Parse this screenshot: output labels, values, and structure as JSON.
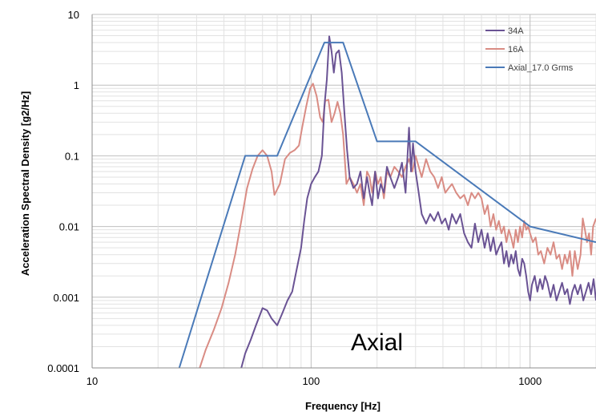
{
  "chart_data": {
    "type": "line",
    "title": "",
    "xlabel": "Frequency [Hz]",
    "ylabel": "Acceleration Spectral Density [g2/Hz]",
    "x_scale": "log",
    "y_scale": "log",
    "xlim": [
      10,
      2000
    ],
    "ylim": [
      0.0001,
      10
    ],
    "x_ticks": [
      {
        "value": 10,
        "label": "10"
      },
      {
        "value": 100,
        "label": "100"
      },
      {
        "value": 1000,
        "label": "1000"
      }
    ],
    "y_ticks": [
      {
        "value": 10,
        "label": "10"
      },
      {
        "value": 1,
        "label": "1"
      },
      {
        "value": 0.1,
        "label": "0.1"
      },
      {
        "value": 0.01,
        "label": "0.01"
      },
      {
        "value": 0.001,
        "label": "0.001"
      },
      {
        "value": 0.0001,
        "label": "0.0001"
      }
    ],
    "grid": true,
    "legend_position": "top-right",
    "annotation": "Axial",
    "series": [
      {
        "name": "34A",
        "color": "#6a5394",
        "points": [
          [
            48,
            0.0001
          ],
          [
            50,
            0.00016
          ],
          [
            53,
            0.00025
          ],
          [
            56,
            0.0004
          ],
          [
            60,
            0.0007
          ],
          [
            63,
            0.00065
          ],
          [
            66,
            0.0005
          ],
          [
            70,
            0.0004
          ],
          [
            74,
            0.0006
          ],
          [
            78,
            0.0009
          ],
          [
            82,
            0.0012
          ],
          [
            86,
            0.0025
          ],
          [
            90,
            0.005
          ],
          [
            93,
            0.012
          ],
          [
            96,
            0.025
          ],
          [
            100,
            0.04
          ],
          [
            104,
            0.05
          ],
          [
            108,
            0.06
          ],
          [
            112,
            0.1
          ],
          [
            115,
            0.5
          ],
          [
            118,
            1.2
          ],
          [
            121,
            4.9
          ],
          [
            124,
            3.0
          ],
          [
            127,
            1.5
          ],
          [
            130,
            2.8
          ],
          [
            134,
            3.1
          ],
          [
            138,
            1.5
          ],
          [
            142,
            0.4
          ],
          [
            146,
            0.12
          ],
          [
            150,
            0.05
          ],
          [
            156,
            0.035
          ],
          [
            162,
            0.04
          ],
          [
            168,
            0.06
          ],
          [
            174,
            0.025
          ],
          [
            180,
            0.05
          ],
          [
            185,
            0.03
          ],
          [
            190,
            0.02
          ],
          [
            196,
            0.06
          ],
          [
            202,
            0.025
          ],
          [
            208,
            0.04
          ],
          [
            215,
            0.03
          ],
          [
            222,
            0.07
          ],
          [
            230,
            0.05
          ],
          [
            240,
            0.035
          ],
          [
            250,
            0.05
          ],
          [
            260,
            0.08
          ],
          [
            270,
            0.03
          ],
          [
            280,
            0.25
          ],
          [
            286,
            0.06
          ],
          [
            292,
            0.15
          ],
          [
            300,
            0.06
          ],
          [
            310,
            0.03
          ],
          [
            320,
            0.015
          ],
          [
            335,
            0.011
          ],
          [
            350,
            0.015
          ],
          [
            365,
            0.012
          ],
          [
            380,
            0.016
          ],
          [
            395,
            0.011
          ],
          [
            410,
            0.013
          ],
          [
            425,
            0.009
          ],
          [
            440,
            0.015
          ],
          [
            460,
            0.011
          ],
          [
            480,
            0.015
          ],
          [
            500,
            0.008
          ],
          [
            520,
            0.006
          ],
          [
            540,
            0.005
          ],
          [
            560,
            0.011
          ],
          [
            580,
            0.006
          ],
          [
            600,
            0.009
          ],
          [
            620,
            0.005
          ],
          [
            640,
            0.008
          ],
          [
            660,
            0.0045
          ],
          [
            680,
            0.007
          ],
          [
            700,
            0.004
          ],
          [
            720,
            0.005
          ],
          [
            740,
            0.006
          ],
          [
            760,
            0.003
          ],
          [
            780,
            0.0045
          ],
          [
            800,
            0.0027
          ],
          [
            820,
            0.004
          ],
          [
            840,
            0.003
          ],
          [
            860,
            0.0045
          ],
          [
            880,
            0.0025
          ],
          [
            900,
            0.002
          ],
          [
            920,
            0.0035
          ],
          [
            940,
            0.003
          ],
          [
            960,
            0.002
          ],
          [
            980,
            0.0012
          ],
          [
            1000,
            0.0009
          ],
          [
            1020,
            0.0015
          ],
          [
            1050,
            0.002
          ],
          [
            1080,
            0.0012
          ],
          [
            1110,
            0.0018
          ],
          [
            1140,
            0.0013
          ],
          [
            1170,
            0.002
          ],
          [
            1200,
            0.0016
          ],
          [
            1240,
            0.001
          ],
          [
            1280,
            0.0015
          ],
          [
            1320,
            0.0009
          ],
          [
            1360,
            0.0012
          ],
          [
            1400,
            0.0016
          ],
          [
            1440,
            0.0011
          ],
          [
            1480,
            0.0013
          ],
          [
            1520,
            0.0008
          ],
          [
            1560,
            0.0012
          ],
          [
            1600,
            0.0015
          ],
          [
            1650,
            0.0011
          ],
          [
            1700,
            0.0015
          ],
          [
            1750,
            0.0009
          ],
          [
            1800,
            0.0012
          ],
          [
            1850,
            0.0016
          ],
          [
            1900,
            0.0011
          ],
          [
            1950,
            0.0018
          ],
          [
            2000,
            0.0009
          ]
        ]
      },
      {
        "name": "16A",
        "color": "#d98c84",
        "points": [
          [
            31,
            0.0001
          ],
          [
            33,
            0.00018
          ],
          [
            36,
            0.00035
          ],
          [
            39,
            0.0007
          ],
          [
            42,
            0.0016
          ],
          [
            45,
            0.004
          ],
          [
            48,
            0.012
          ],
          [
            51,
            0.035
          ],
          [
            54,
            0.065
          ],
          [
            57,
            0.1
          ],
          [
            60,
            0.12
          ],
          [
            63,
            0.1
          ],
          [
            66,
            0.06
          ],
          [
            68,
            0.028
          ],
          [
            72,
            0.04
          ],
          [
            76,
            0.09
          ],
          [
            80,
            0.11
          ],
          [
            84,
            0.12
          ],
          [
            88,
            0.14
          ],
          [
            91,
            0.25
          ],
          [
            95,
            0.5
          ],
          [
            99,
            0.9
          ],
          [
            102,
            1.05
          ],
          [
            106,
            0.7
          ],
          [
            110,
            0.35
          ],
          [
            113,
            0.3
          ],
          [
            116,
            0.6
          ],
          [
            120,
            0.62
          ],
          [
            124,
            0.3
          ],
          [
            128,
            0.4
          ],
          [
            132,
            0.58
          ],
          [
            136,
            0.4
          ],
          [
            140,
            0.2
          ],
          [
            145,
            0.04
          ],
          [
            150,
            0.05
          ],
          [
            156,
            0.04
          ],
          [
            162,
            0.03
          ],
          [
            168,
            0.04
          ],
          [
            174,
            0.02
          ],
          [
            180,
            0.06
          ],
          [
            185,
            0.05
          ],
          [
            190,
            0.03
          ],
          [
            196,
            0.06
          ],
          [
            202,
            0.04
          ],
          [
            208,
            0.05
          ],
          [
            215,
            0.025
          ],
          [
            222,
            0.06
          ],
          [
            230,
            0.05
          ],
          [
            240,
            0.07
          ],
          [
            250,
            0.06
          ],
          [
            260,
            0.05
          ],
          [
            270,
            0.07
          ],
          [
            280,
            0.09
          ],
          [
            290,
            0.06
          ],
          [
            300,
            0.1
          ],
          [
            310,
            0.07
          ],
          [
            320,
            0.05
          ],
          [
            335,
            0.09
          ],
          [
            350,
            0.06
          ],
          [
            365,
            0.05
          ],
          [
            380,
            0.035
          ],
          [
            395,
            0.05
          ],
          [
            410,
            0.03
          ],
          [
            425,
            0.035
          ],
          [
            440,
            0.04
          ],
          [
            460,
            0.03
          ],
          [
            480,
            0.025
          ],
          [
            500,
            0.028
          ],
          [
            520,
            0.02
          ],
          [
            540,
            0.03
          ],
          [
            560,
            0.025
          ],
          [
            580,
            0.03
          ],
          [
            600,
            0.025
          ],
          [
            620,
            0.015
          ],
          [
            640,
            0.02
          ],
          [
            660,
            0.01
          ],
          [
            680,
            0.015
          ],
          [
            700,
            0.009
          ],
          [
            720,
            0.012
          ],
          [
            740,
            0.008
          ],
          [
            760,
            0.01
          ],
          [
            780,
            0.006
          ],
          [
            800,
            0.009
          ],
          [
            820,
            0.007
          ],
          [
            840,
            0.005
          ],
          [
            860,
            0.009
          ],
          [
            880,
            0.006
          ],
          [
            900,
            0.01
          ],
          [
            920,
            0.007
          ],
          [
            940,
            0.012
          ],
          [
            960,
            0.009
          ],
          [
            980,
            0.01
          ],
          [
            1000,
            0.008
          ],
          [
            1030,
            0.006
          ],
          [
            1060,
            0.007
          ],
          [
            1090,
            0.004
          ],
          [
            1120,
            0.0045
          ],
          [
            1160,
            0.003
          ],
          [
            1200,
            0.005
          ],
          [
            1240,
            0.004
          ],
          [
            1280,
            0.006
          ],
          [
            1320,
            0.0035
          ],
          [
            1360,
            0.004
          ],
          [
            1400,
            0.0025
          ],
          [
            1440,
            0.004
          ],
          [
            1480,
            0.003
          ],
          [
            1520,
            0.0045
          ],
          [
            1560,
            0.002
          ],
          [
            1600,
            0.0045
          ],
          [
            1650,
            0.0025
          ],
          [
            1700,
            0.004
          ],
          [
            1740,
            0.013
          ],
          [
            1780,
            0.009
          ],
          [
            1820,
            0.006
          ],
          [
            1860,
            0.008
          ],
          [
            1900,
            0.004
          ],
          [
            1940,
            0.01
          ],
          [
            2000,
            0.013
          ]
        ]
      },
      {
        "name": "Axial_17.0 Grms",
        "color": "#4a7ab8",
        "points": [
          [
            25,
            0.0001
          ],
          [
            50,
            0.1
          ],
          [
            70,
            0.1
          ],
          [
            115,
            4
          ],
          [
            140,
            4
          ],
          [
            200,
            0.16
          ],
          [
            300,
            0.16
          ],
          [
            1000,
            0.01
          ],
          [
            2000,
            0.006
          ]
        ]
      }
    ]
  }
}
